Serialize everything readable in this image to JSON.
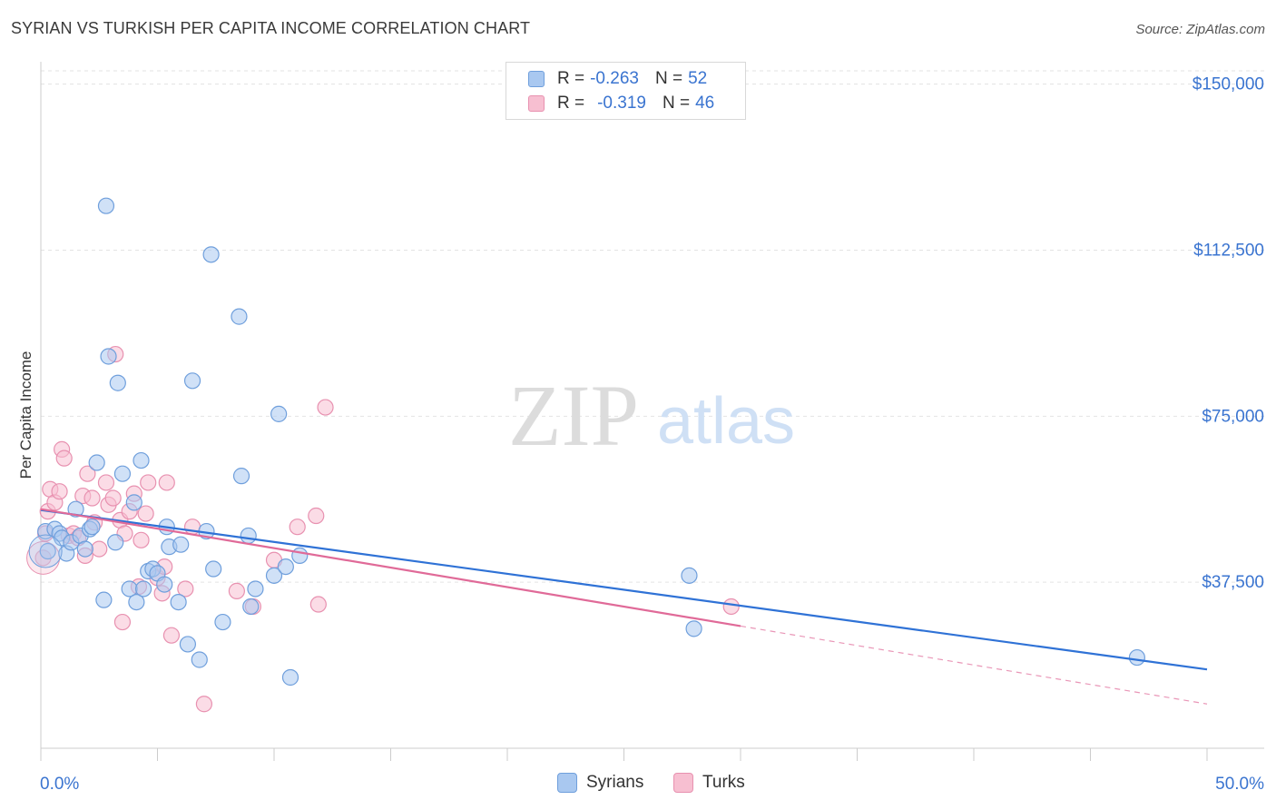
{
  "title": "SYRIAN VS TURKISH PER CAPITA INCOME CORRELATION CHART",
  "source": "Source: ZipAtlas.com",
  "watermark": {
    "zip": "ZIP",
    "atlas": "atlas"
  },
  "legend_top": [
    {
      "r_label": "R =",
      "r_value": "-0.263",
      "n_label": "N =",
      "n_value": "52"
    },
    {
      "r_label": "R =",
      "r_value": "-0.319",
      "n_label": "N =",
      "n_value": "46"
    }
  ],
  "legend_bottom": [
    "Syrians",
    "Turks"
  ],
  "colors": {
    "syrians_fill": "#a9c8f0",
    "syrians_stroke": "#6f9fdc",
    "syrians_line": "#2f72d6",
    "turks_fill": "#f7bfd1",
    "turks_stroke": "#e891b0",
    "turks_line": "#e06a98",
    "axis_label": "#3a74d0",
    "grid": "#e3e3e3"
  },
  "chart_data": {
    "type": "scatter",
    "title": "SYRIAN VS TURKISH PER CAPITA INCOME CORRELATION CHART",
    "xlabel": "",
    "ylabel": "Per Capita Income",
    "xlim": [
      0,
      50
    ],
    "ylim": [
      0,
      153000
    ],
    "x_tick_labels": [
      "0.0%",
      "50.0%"
    ],
    "y_ticks": [
      37500,
      75000,
      112500,
      150000
    ],
    "y_tick_labels": [
      "$37,500",
      "$75,000",
      "$112,500",
      "$150,000"
    ],
    "series": [
      {
        "name": "Syrians",
        "r": -0.263,
        "n": 52,
        "trend": {
          "x0": 0,
          "y0": 53800,
          "x1": 50,
          "y1": 17800,
          "solid_to": 50
        },
        "points": [
          [
            0.2,
            49000
          ],
          [
            0.3,
            44500
          ],
          [
            0.6,
            49500
          ],
          [
            0.8,
            48500
          ],
          [
            0.9,
            47500
          ],
          [
            1.1,
            44000
          ],
          [
            1.3,
            46500
          ],
          [
            1.5,
            54000
          ],
          [
            1.7,
            48000
          ],
          [
            1.9,
            45000
          ],
          [
            2.1,
            49500
          ],
          [
            2.2,
            50000
          ],
          [
            2.4,
            64500
          ],
          [
            2.7,
            33500
          ],
          [
            2.8,
            122500
          ],
          [
            2.9,
            88500
          ],
          [
            3.2,
            46500
          ],
          [
            3.3,
            82500
          ],
          [
            3.5,
            62000
          ],
          [
            3.8,
            36000
          ],
          [
            4.0,
            55500
          ],
          [
            4.1,
            33000
          ],
          [
            4.3,
            65000
          ],
          [
            4.4,
            36000
          ],
          [
            4.6,
            40000
          ],
          [
            4.8,
            40500
          ],
          [
            5.0,
            39500
          ],
          [
            5.3,
            37000
          ],
          [
            5.4,
            50000
          ],
          [
            5.5,
            45500
          ],
          [
            5.9,
            33000
          ],
          [
            6.0,
            46000
          ],
          [
            6.3,
            23500
          ],
          [
            6.5,
            83000
          ],
          [
            6.8,
            20000
          ],
          [
            7.1,
            49000
          ],
          [
            7.3,
            111500
          ],
          [
            7.4,
            40500
          ],
          [
            7.8,
            28500
          ],
          [
            8.5,
            97500
          ],
          [
            8.6,
            61500
          ],
          [
            8.9,
            48000
          ],
          [
            9.0,
            32000
          ],
          [
            9.2,
            36000
          ],
          [
            10.0,
            39000
          ],
          [
            10.5,
            41000
          ],
          [
            10.2,
            75500
          ],
          [
            10.7,
            16000
          ],
          [
            11.1,
            43500
          ],
          [
            27.8,
            39000
          ],
          [
            28.0,
            27000
          ],
          [
            47.0,
            20500
          ]
        ]
      },
      {
        "name": "Turks",
        "r": -0.319,
        "n": 46,
        "trend": {
          "x0": 0,
          "y0": 54000,
          "x1": 50,
          "y1": 10000,
          "solid_to": 30
        },
        "points": [
          [
            0.1,
            43000
          ],
          [
            0.3,
            53500
          ],
          [
            0.4,
            58500
          ],
          [
            0.6,
            55500
          ],
          [
            0.8,
            58000
          ],
          [
            0.9,
            67500
          ],
          [
            1.0,
            65500
          ],
          [
            1.2,
            48000
          ],
          [
            1.4,
            48500
          ],
          [
            1.6,
            47500
          ],
          [
            1.8,
            57000
          ],
          [
            1.9,
            43500
          ],
          [
            2.0,
            62000
          ],
          [
            2.2,
            56500
          ],
          [
            2.3,
            51000
          ],
          [
            2.5,
            45000
          ],
          [
            2.8,
            60000
          ],
          [
            2.9,
            55000
          ],
          [
            3.1,
            56500
          ],
          [
            3.2,
            89000
          ],
          [
            3.4,
            51500
          ],
          [
            3.5,
            28500
          ],
          [
            3.6,
            48500
          ],
          [
            3.8,
            53500
          ],
          [
            4.0,
            57500
          ],
          [
            4.2,
            36500
          ],
          [
            4.3,
            47000
          ],
          [
            4.5,
            53000
          ],
          [
            4.6,
            60000
          ],
          [
            5.0,
            38500
          ],
          [
            5.2,
            35000
          ],
          [
            5.3,
            41000
          ],
          [
            5.4,
            60000
          ],
          [
            5.6,
            25500
          ],
          [
            6.2,
            36000
          ],
          [
            6.5,
            50000
          ],
          [
            7.0,
            10000
          ],
          [
            8.4,
            35500
          ],
          [
            9.1,
            32000
          ],
          [
            10.0,
            42500
          ],
          [
            11.0,
            50000
          ],
          [
            11.8,
            52500
          ],
          [
            11.9,
            32500
          ],
          [
            12.2,
            77000
          ],
          [
            29.6,
            32000
          ],
          [
            0.2,
            48500
          ]
        ]
      }
    ]
  }
}
